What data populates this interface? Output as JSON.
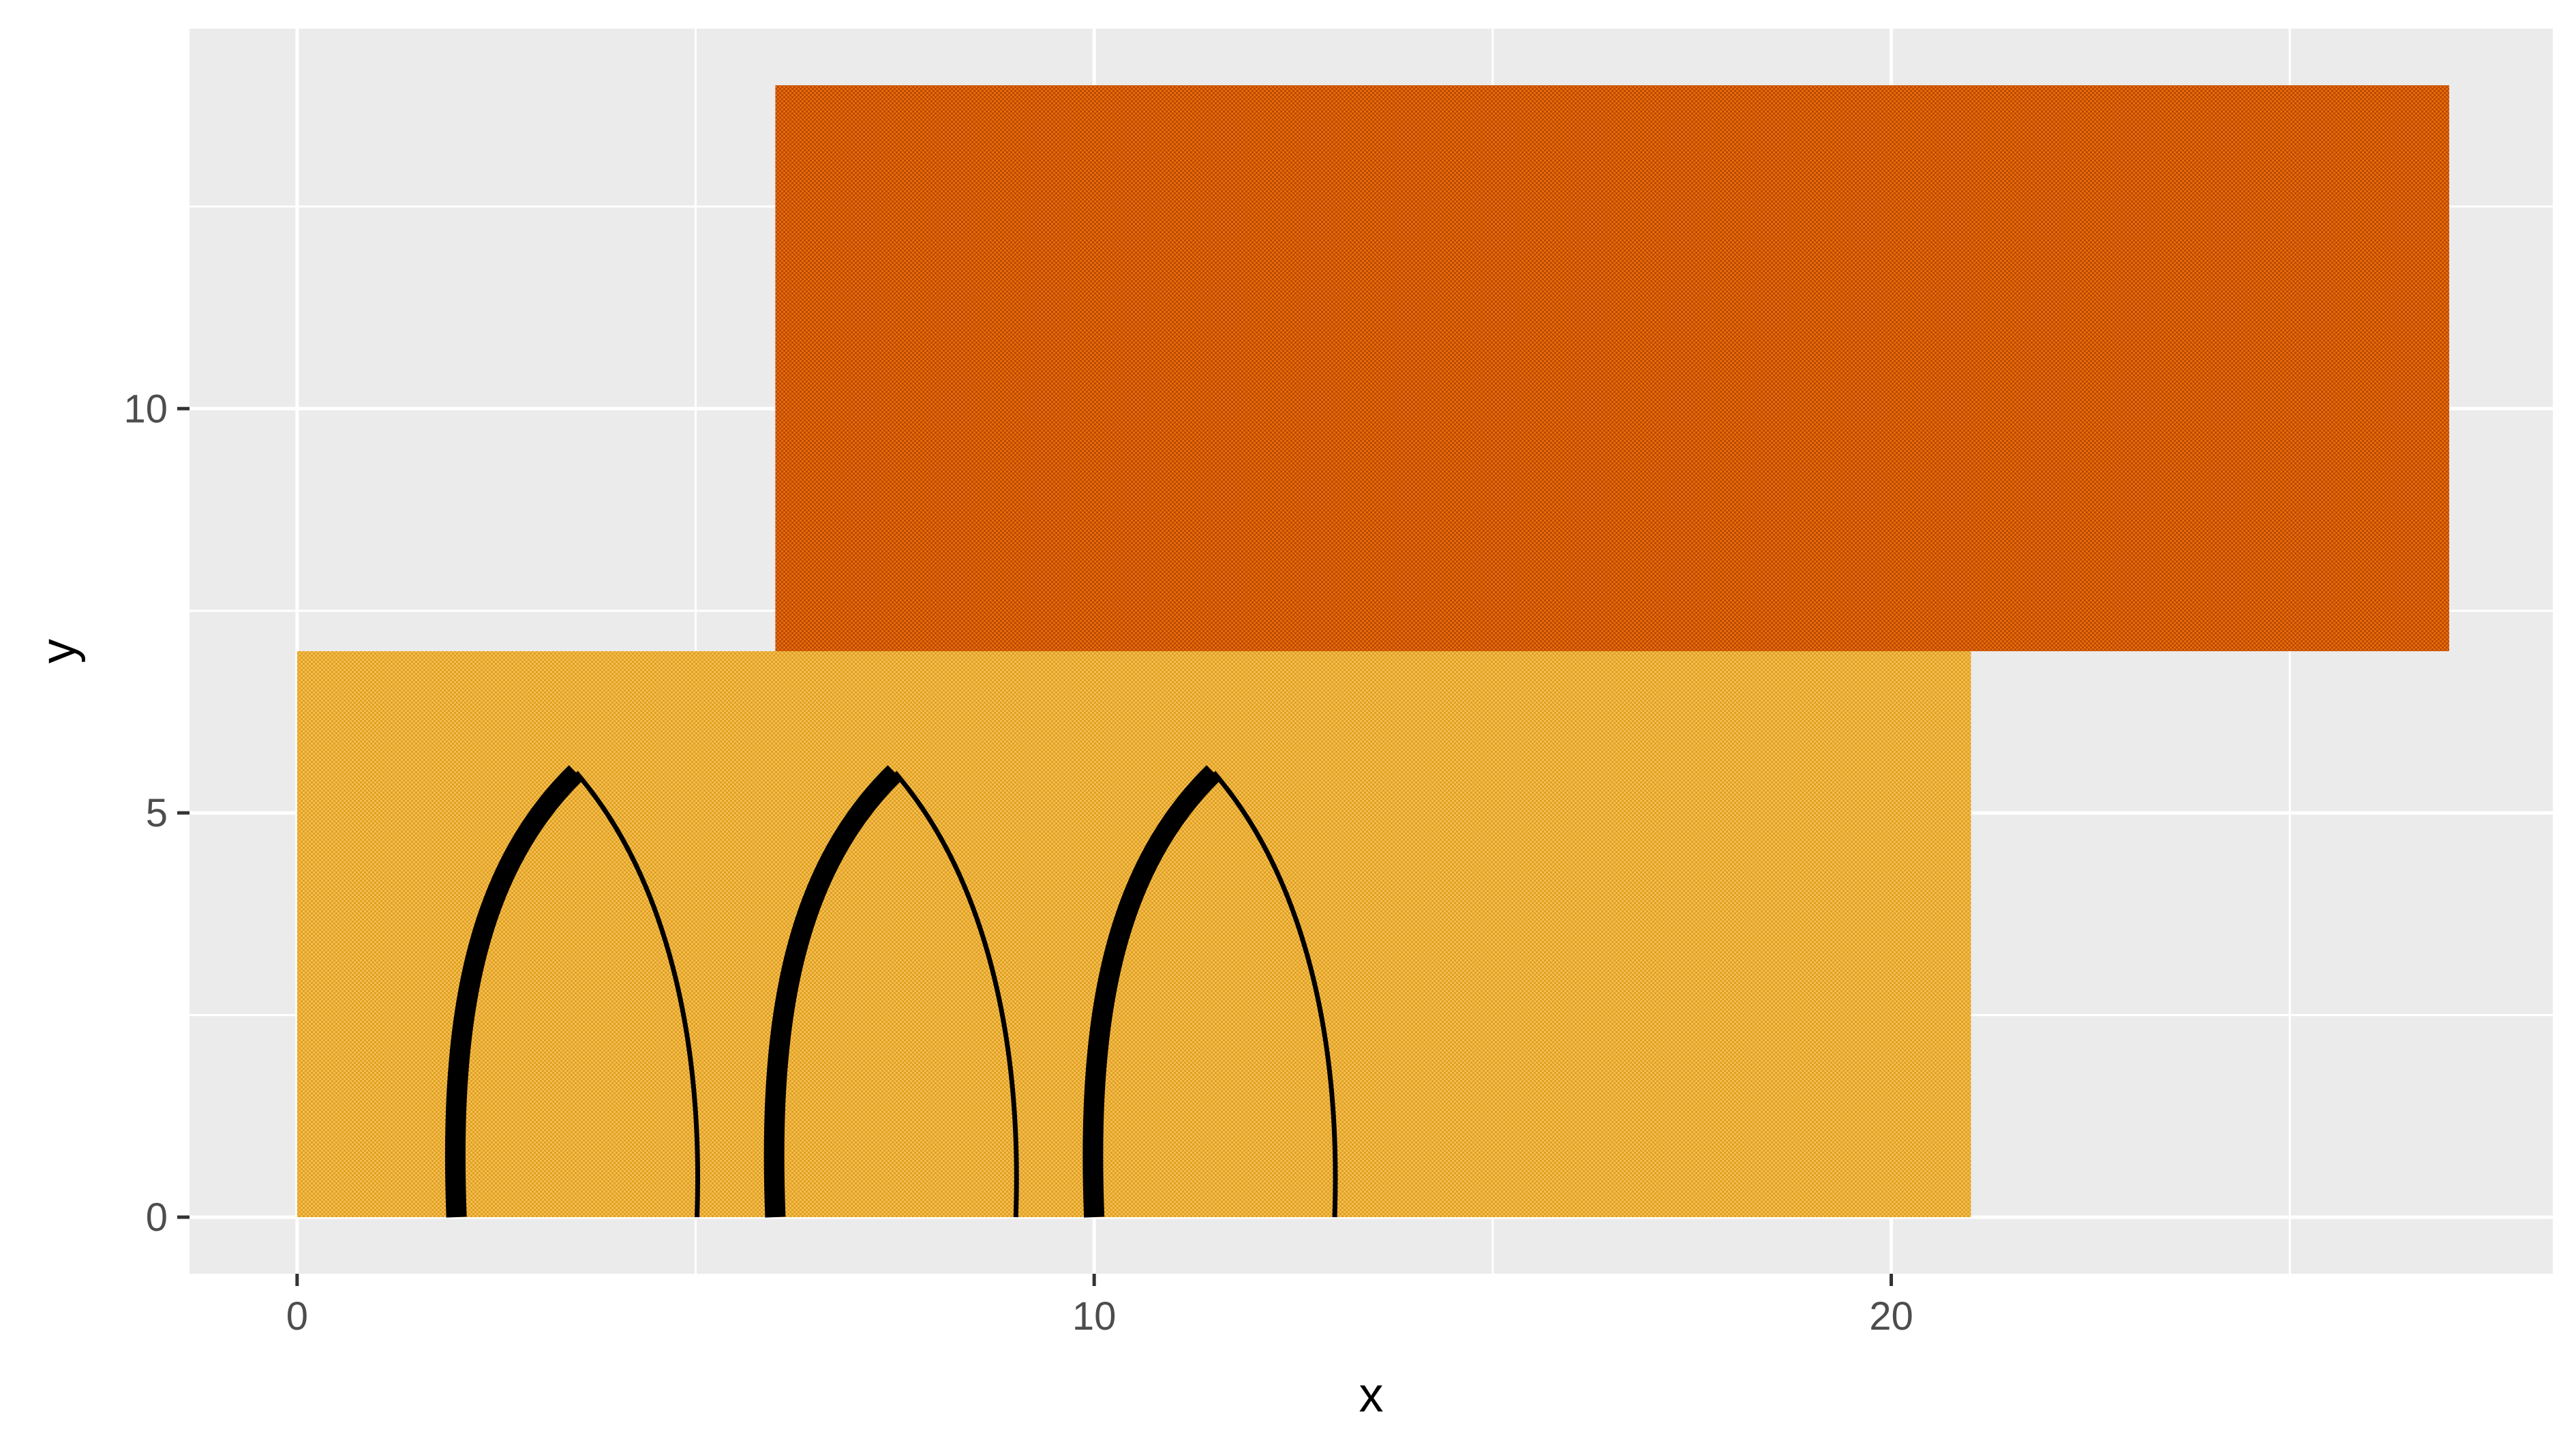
{
  "chart_data": {
    "type": "rect-annotation",
    "title": "",
    "xlabel": "x",
    "ylabel": "y",
    "xlim": [
      -1.35,
      28.3
    ],
    "ylim": [
      -0.7,
      14.7
    ],
    "x_ticks": [
      0,
      10,
      20
    ],
    "y_ticks": [
      0,
      5,
      10
    ],
    "x_minor": [
      5,
      15,
      25
    ],
    "y_minor": [
      2.5,
      7.5,
      12.5
    ],
    "grid": true,
    "panel_background": "#ebebeb",
    "grid_color": "#ffffff",
    "rects": [
      {
        "xmin": 0,
        "xmax": 21,
        "ymin": 0,
        "ymax": 7,
        "fill": "#f3bd52",
        "pattern": "#e0a020"
      },
      {
        "xmin": 6,
        "xmax": 27,
        "ymin": 7,
        "ymax": 14,
        "fill": "#e86a0c",
        "pattern": "#b84a00"
      }
    ],
    "curves": [
      {
        "base_left": 2,
        "base_right": 5,
        "tip_x": 3.5,
        "tip_y": 5.5
      },
      {
        "base_left": 6,
        "base_right": 9,
        "tip_x": 7.5,
        "tip_y": 5.5
      },
      {
        "base_left": 10,
        "base_right": 13,
        "tip_x": 11.5,
        "tip_y": 5.5
      }
    ],
    "curve_color": "#000000"
  }
}
